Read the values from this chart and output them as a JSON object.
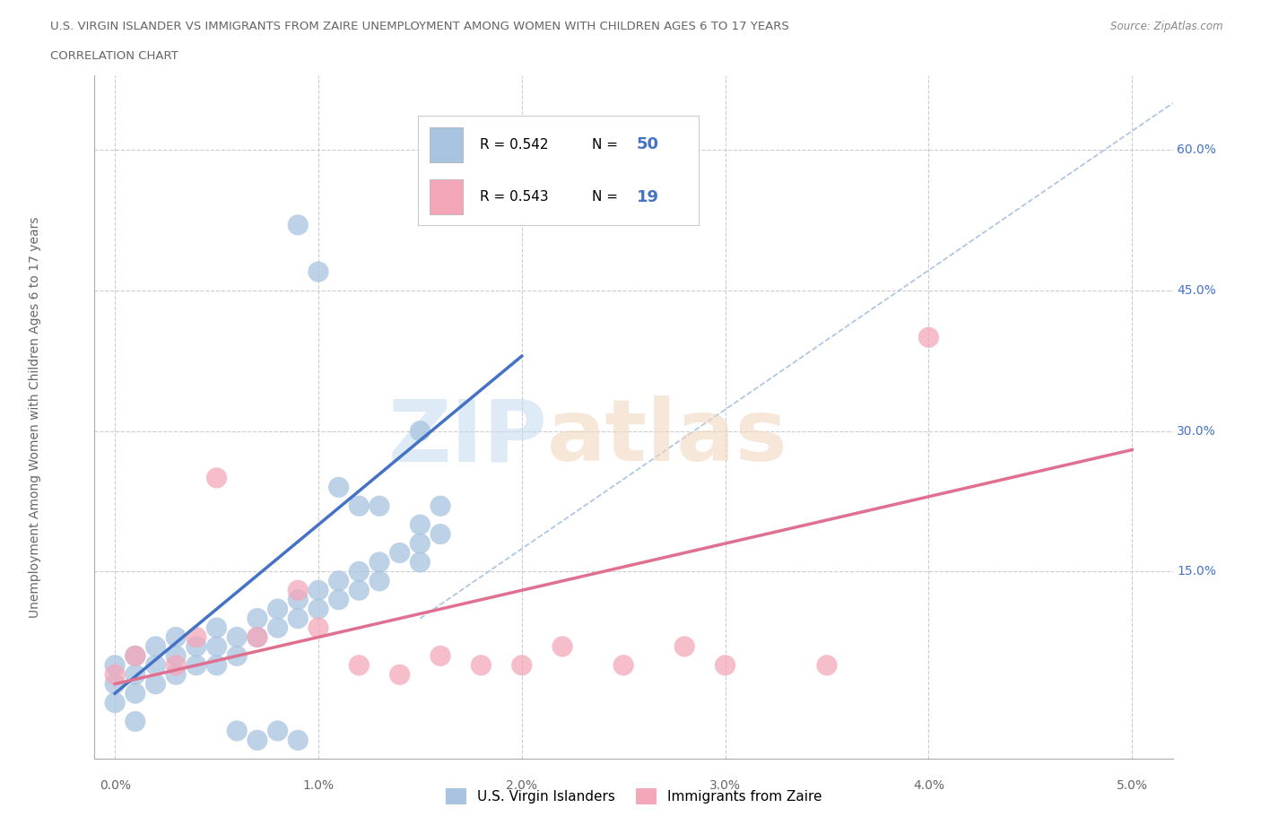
{
  "title_line1": "U.S. VIRGIN ISLANDER VS IMMIGRANTS FROM ZAIRE UNEMPLOYMENT AMONG WOMEN WITH CHILDREN AGES 6 TO 17 YEARS",
  "title_line2": "CORRELATION CHART",
  "source": "Source: ZipAtlas.com",
  "ylabel": "Unemployment Among Women with Children Ages 6 to 17 years",
  "xlim": [
    -0.001,
    0.052
  ],
  "ylim": [
    -0.05,
    0.68
  ],
  "xtick_labels": [
    "0.0%",
    "1.0%",
    "2.0%",
    "3.0%",
    "4.0%",
    "5.0%"
  ],
  "xtick_vals": [
    0.0,
    0.01,
    0.02,
    0.03,
    0.04,
    0.05
  ],
  "ytick_labels": [
    "15.0%",
    "30.0%",
    "45.0%",
    "60.0%"
  ],
  "ytick_vals": [
    0.15,
    0.3,
    0.45,
    0.6
  ],
  "blue_color": "#a8c4e0",
  "pink_color": "#f4a7b9",
  "blue_line_color": "#4472c4",
  "pink_line_color": "#e07090",
  "ref_line_color": "#a8c4e0",
  "grid_color": "#cccccc",
  "background_color": "#ffffff",
  "legend_box_color": "#e8f0f8",
  "blue_scatter_x": [
    0.0,
    0.0,
    0.0,
    0.001,
    0.001,
    0.001,
    0.001,
    0.002,
    0.002,
    0.002,
    0.003,
    0.003,
    0.003,
    0.004,
    0.004,
    0.005,
    0.005,
    0.005,
    0.006,
    0.006,
    0.007,
    0.007,
    0.008,
    0.008,
    0.009,
    0.009,
    0.01,
    0.01,
    0.011,
    0.011,
    0.012,
    0.012,
    0.013,
    0.013,
    0.014,
    0.015,
    0.015,
    0.016,
    0.006,
    0.007,
    0.008,
    0.009,
    0.009,
    0.01,
    0.011,
    0.012,
    0.013,
    0.015,
    0.015,
    0.016
  ],
  "blue_scatter_y": [
    0.05,
    0.03,
    0.01,
    0.06,
    0.04,
    0.02,
    -0.01,
    0.07,
    0.05,
    0.03,
    0.08,
    0.06,
    0.04,
    0.07,
    0.05,
    0.09,
    0.07,
    0.05,
    0.08,
    0.06,
    0.1,
    0.08,
    0.11,
    0.09,
    0.12,
    0.1,
    0.13,
    0.11,
    0.14,
    0.12,
    0.15,
    0.13,
    0.16,
    0.14,
    0.17,
    0.18,
    0.16,
    0.19,
    -0.02,
    -0.03,
    -0.02,
    -0.03,
    0.52,
    0.47,
    0.24,
    0.22,
    0.22,
    0.2,
    0.3,
    0.22
  ],
  "pink_scatter_x": [
    0.0,
    0.001,
    0.003,
    0.004,
    0.005,
    0.007,
    0.009,
    0.01,
    0.012,
    0.014,
    0.016,
    0.018,
    0.02,
    0.022,
    0.025,
    0.028,
    0.03,
    0.035,
    0.04
  ],
  "pink_scatter_y": [
    0.04,
    0.06,
    0.05,
    0.08,
    0.25,
    0.08,
    0.13,
    0.09,
    0.05,
    0.04,
    0.06,
    0.05,
    0.05,
    0.07,
    0.05,
    0.07,
    0.05,
    0.05,
    0.4
  ],
  "blue_trend_x": [
    0.0,
    0.02
  ],
  "blue_trend_y": [
    0.02,
    0.38
  ],
  "pink_trend_x": [
    0.0,
    0.05
  ],
  "pink_trend_y": [
    0.03,
    0.28
  ],
  "ref_line_x": [
    0.015,
    0.052
  ],
  "ref_line_y": [
    0.1,
    0.65
  ]
}
